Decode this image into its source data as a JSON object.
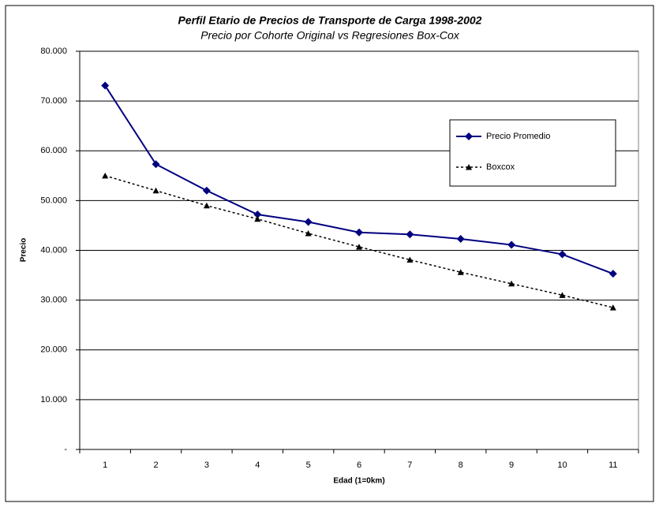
{
  "chart_data": {
    "type": "line",
    "title": "Perfil Etario de Precios de Transporte de Carga 1998-2002",
    "subtitle": "Precio por Cohorte Original vs Regresiones Box-Cox",
    "x_label": "Edad (1=0km)",
    "y_label": "Precio",
    "categories": [
      1,
      2,
      3,
      4,
      5,
      6,
      7,
      8,
      9,
      10,
      11
    ],
    "series": [
      {
        "name": "Precio Promedio",
        "color": "#000080",
        "marker": "diamond",
        "dash": false,
        "values": [
          73100,
          57300,
          52000,
          47200,
          45700,
          43600,
          43200,
          42300,
          41100,
          39200,
          35300
        ]
      },
      {
        "name": "Boxcox",
        "color": "#000000",
        "marker": "triangle",
        "dash": true,
        "values": [
          55000,
          52000,
          49000,
          46300,
          43400,
          40700,
          38100,
          35600,
          33300,
          31000,
          28500
        ]
      }
    ],
    "ylim": [
      0,
      80000
    ],
    "yticks": [
      {
        "value": 0,
        "label": "-"
      },
      {
        "value": 10000,
        "label": "10.000"
      },
      {
        "value": 20000,
        "label": "20.000"
      },
      {
        "value": 30000,
        "label": "30.000"
      },
      {
        "value": 40000,
        "label": "40.000"
      },
      {
        "value": 50000,
        "label": "50.000"
      },
      {
        "value": 60000,
        "label": "60.000"
      },
      {
        "value": 70000,
        "label": "70.000"
      },
      {
        "value": 80000,
        "label": "80.000"
      }
    ],
    "grid": true,
    "legend": "upper right"
  }
}
